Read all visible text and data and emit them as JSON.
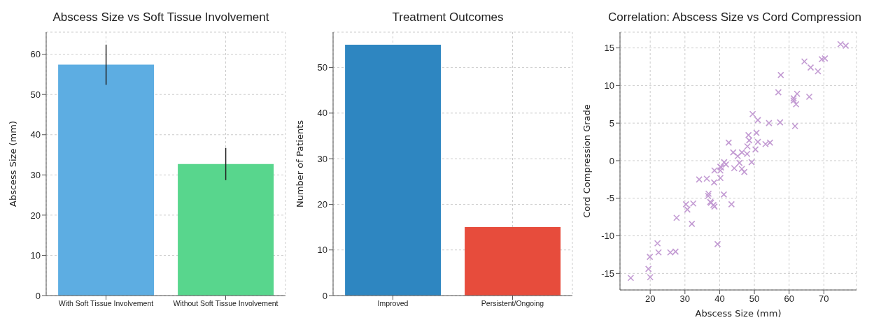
{
  "chart_data": [
    {
      "type": "bar",
      "title": "Abscess Size vs Soft Tissue Involvement",
      "ylabel": "Abscess Size (mm)",
      "categories": [
        "With Soft Tissue Involvement",
        "Without Soft Tissue Involvement"
      ],
      "values": [
        57.4,
        32.7
      ],
      "errors": [
        5,
        4
      ],
      "colors": [
        "#5dade2",
        "#58d68d"
      ],
      "ylim": [
        0,
        65.5
      ],
      "yticks": [
        0,
        10,
        20,
        30,
        40,
        50,
        60
      ],
      "grid": true
    },
    {
      "type": "bar",
      "title": "Treatment Outcomes",
      "ylabel": "Number of Patients",
      "categories": [
        "Improved",
        "Persistent/Ongoing"
      ],
      "values": [
        55,
        15
      ],
      "colors": [
        "#2e86c1",
        "#e74c3c"
      ],
      "ylim": [
        0,
        57.75
      ],
      "yticks": [
        0,
        10,
        20,
        30,
        40,
        50
      ],
      "grid": true
    },
    {
      "type": "scatter",
      "title": "Correlation: Abscess Size vs Cord Compression",
      "xlabel": "Abscess Size (mm)",
      "ylabel": "Cord Compression Grade",
      "color": "#c39bd3",
      "marker": "cross",
      "grid": true,
      "xlim": [
        11.3,
        79.4
      ],
      "xticks": [
        20,
        30,
        40,
        50,
        60,
        70
      ],
      "ylim": [
        -17.2,
        17.1
      ],
      "yticks": [
        -15,
        -10,
        -5,
        0,
        5,
        10,
        15
      ],
      "x": [
        74.8,
        76.3,
        69.4,
        70.3,
        64.4,
        66.2,
        68.3,
        57.6,
        56.9,
        62.3,
        61.3,
        61.3,
        62.0,
        65.8,
        61.7,
        57.4,
        54.2,
        49.5,
        51.0,
        50.6,
        48.3,
        48.5,
        48.0,
        51.0,
        50.3,
        53.2,
        54.5,
        42.6,
        43.9,
        46.4,
        47.9,
        45.2,
        49.2,
        45.7,
        41.3,
        41.8,
        44.2,
        46.4,
        47.1,
        40.4,
        38.5,
        40.2,
        40.2,
        40.2,
        36.3,
        34.1,
        38.4,
        36.8,
        36.7,
        41.2,
        37.3,
        37.5,
        38.2,
        38.5,
        43.4,
        30.3,
        32.4,
        30.7,
        27.6,
        32.0,
        39.4,
        22.1,
        22.4,
        25.8,
        27.3,
        19.9,
        19.5,
        20.0,
        14.4
      ],
      "values": [
        15.5,
        15.3,
        13.5,
        13.6,
        13.2,
        12.4,
        11.9,
        11.4,
        9.1,
        8.9,
        8.3,
        8.0,
        7.5,
        8.5,
        4.6,
        5.1,
        5.0,
        6.2,
        5.4,
        3.7,
        3.4,
        2.7,
        1.9,
        2.5,
        1.5,
        2.2,
        2.4,
        2.4,
        1.1,
        1.1,
        0.9,
        0.6,
        -0.2,
        -0.3,
        -0.2,
        -0.5,
        -1.0,
        -1.1,
        -1.5,
        -0.9,
        -1.3,
        -0.8,
        -1.3,
        -2.3,
        -2.4,
        -2.5,
        -2.9,
        -4.4,
        -4.7,
        -4.5,
        -5.5,
        -5.6,
        -5.9,
        -6.1,
        -5.8,
        -5.8,
        -5.7,
        -6.5,
        -7.6,
        -8.4,
        -11.1,
        -11.0,
        -12.2,
        -12.2,
        -12.1,
        -12.8,
        -14.4,
        -15.5,
        -15.6
      ]
    }
  ]
}
